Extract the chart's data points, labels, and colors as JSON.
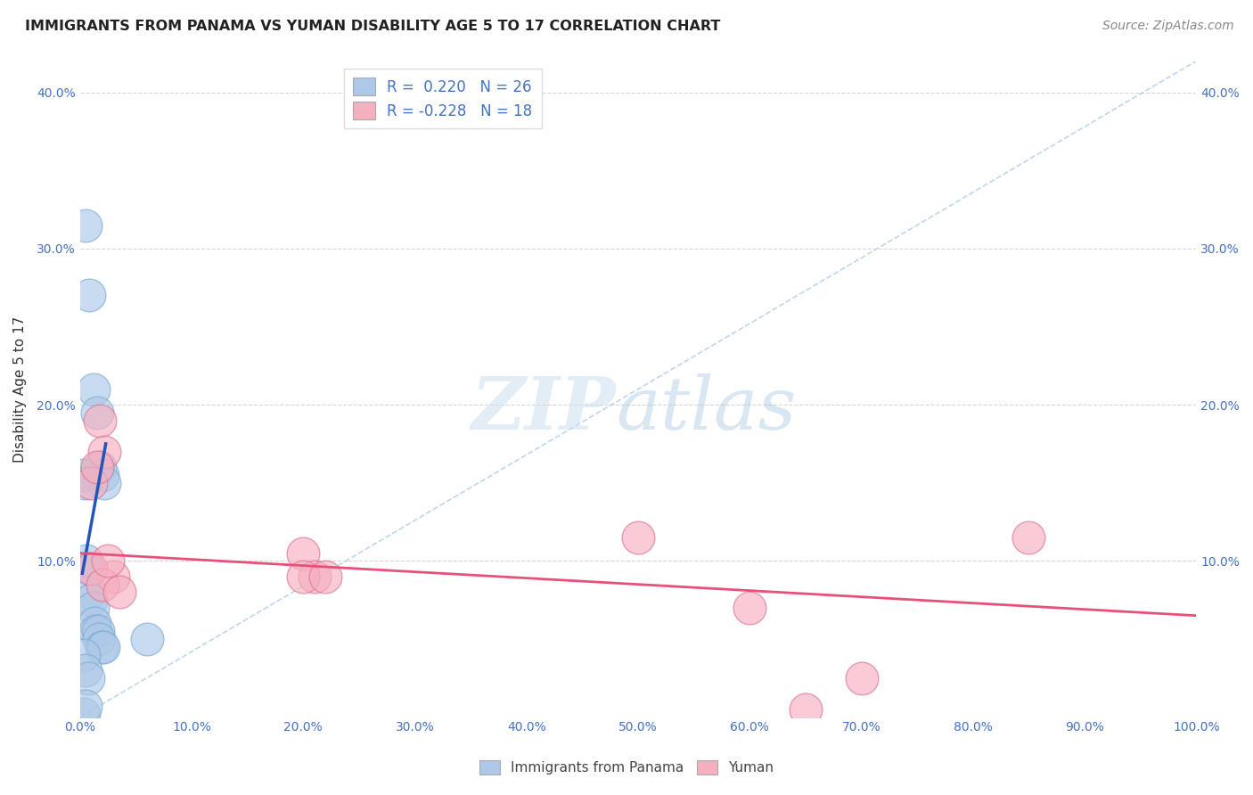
{
  "title": "IMMIGRANTS FROM PANAMA VS YUMAN DISABILITY AGE 5 TO 17 CORRELATION CHART",
  "source": "Source: ZipAtlas.com",
  "ylabel": "Disability Age 5 to 17",
  "xlim": [
    0.0,
    1.0
  ],
  "ylim": [
    0.0,
    0.42
  ],
  "xticks": [
    0.0,
    0.1,
    0.2,
    0.3,
    0.4,
    0.5,
    0.6,
    0.7,
    0.8,
    0.9,
    1.0
  ],
  "yticks": [
    0.0,
    0.1,
    0.2,
    0.3,
    0.4
  ],
  "xtick_labels": [
    "0.0%",
    "10.0%",
    "20.0%",
    "30.0%",
    "40.0%",
    "50.0%",
    "60.0%",
    "70.0%",
    "80.0%",
    "90.0%",
    "100.0%"
  ],
  "ytick_labels": [
    "",
    "10.0%",
    "20.0%",
    "30.0%",
    "40.0%"
  ],
  "legend_R1": "R =  0.220",
  "legend_N1": "N = 26",
  "legend_R2": "R = -0.228",
  "legend_N2": "N = 18",
  "color_blue": "#adc8e8",
  "color_pink": "#f5b0c0",
  "line_blue": "#2255bb",
  "line_pink": "#e8507a",
  "color_dashed": "#b0cce8",
  "blue_scatter_x": [
    0.005,
    0.008,
    0.012,
    0.015,
    0.018,
    0.02,
    0.022,
    0.003,
    0.004,
    0.006,
    0.007,
    0.009,
    0.01,
    0.011,
    0.013,
    0.014,
    0.016,
    0.017,
    0.019,
    0.021,
    0.003,
    0.005,
    0.007,
    0.06,
    0.003,
    0.005
  ],
  "blue_scatter_y": [
    0.315,
    0.27,
    0.21,
    0.195,
    0.16,
    0.155,
    0.15,
    0.155,
    0.15,
    0.1,
    0.095,
    0.08,
    0.075,
    0.07,
    0.06,
    0.055,
    0.055,
    0.05,
    0.045,
    0.045,
    0.04,
    0.03,
    0.025,
    0.05,
    0.002,
    0.007
  ],
  "pink_scatter_x": [
    0.01,
    0.018,
    0.022,
    0.03,
    0.2,
    0.21,
    0.5,
    0.6,
    0.85,
    0.01,
    0.015,
    0.02,
    0.025,
    0.035,
    0.2,
    0.22,
    0.65,
    0.7
  ],
  "pink_scatter_y": [
    0.15,
    0.19,
    0.17,
    0.09,
    0.105,
    0.09,
    0.115,
    0.07,
    0.115,
    0.095,
    0.16,
    0.085,
    0.1,
    0.08,
    0.09,
    0.09,
    0.005,
    0.025
  ],
  "blue_trend_x": [
    0.002,
    0.023
  ],
  "blue_trend_y": [
    0.092,
    0.175
  ],
  "pink_trend_x": [
    0.0,
    1.0
  ],
  "pink_trend_y": [
    0.105,
    0.065
  ],
  "dashed_line_x": [
    0.0,
    1.0
  ],
  "dashed_line_y": [
    0.0,
    0.42
  ]
}
